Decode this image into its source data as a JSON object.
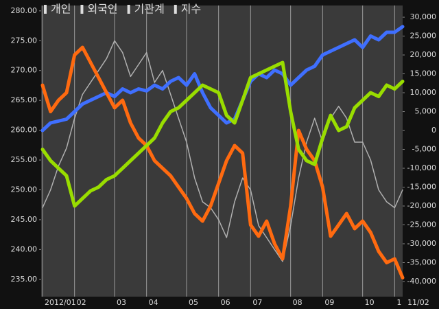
{
  "chart_data": {
    "type": "line",
    "categories": [
      "2012/01",
      null,
      null,
      null,
      "02",
      null,
      null,
      null,
      null,
      "03",
      null,
      null,
      null,
      "04",
      null,
      null,
      null,
      null,
      "05",
      null,
      null,
      null,
      "06",
      null,
      null,
      null,
      "07",
      null,
      null,
      null,
      null,
      "08",
      null,
      null,
      null,
      "09",
      null,
      null,
      null,
      null,
      "10",
      null,
      null,
      null,
      "1",
      null
    ],
    "date_label": "11/02",
    "series": [
      {
        "name": "개인",
        "color": "#3f6fff",
        "axis": "y2",
        "values": [
          0,
          2000,
          2500,
          3000,
          5000,
          7000,
          8000,
          9000,
          10000,
          9000,
          11000,
          10000,
          11000,
          10500,
          12000,
          11000,
          13000,
          14000,
          12000,
          15000,
          10000,
          6000,
          4000,
          2000,
          3000,
          8000,
          13000,
          15000,
          14000,
          16000,
          15000,
          12000,
          14000,
          16000,
          17000,
          20000,
          21000,
          22000,
          23000,
          24000,
          22000,
          25000,
          24000,
          26000,
          26000,
          27500
        ]
      },
      {
        "name": "외국인",
        "color": "#ff6a10",
        "axis": "y2",
        "values": [
          12000,
          5000,
          8000,
          10000,
          20000,
          22000,
          18000,
          14000,
          10000,
          6000,
          8000,
          2000,
          -2000,
          -4000,
          -8000,
          -10000,
          -12000,
          -15000,
          -18000,
          -22000,
          -24000,
          -20000,
          -14000,
          -8000,
          -4000,
          -6000,
          -25000,
          -28000,
          -24000,
          -30000,
          -34000,
          -20000,
          0,
          -5000,
          -8000,
          -15000,
          -28000,
          -25000,
          -22000,
          -26000,
          -24000,
          -27000,
          -32000,
          -35000,
          -34000,
          -39000
        ]
      },
      {
        "name": "기관계",
        "color": "#99dd00",
        "axis": "y2",
        "values": [
          -5000,
          -8000,
          -10000,
          -12000,
          -20000,
          -18000,
          -16000,
          -15000,
          -13000,
          -12000,
          -10000,
          -8000,
          -6000,
          -4000,
          -2000,
          2000,
          5000,
          6000,
          8000,
          10000,
          12000,
          11000,
          10000,
          4000,
          2000,
          8000,
          14000,
          15000,
          16000,
          17000,
          18000,
          5000,
          -5000,
          -8000,
          -9000,
          -2000,
          4000,
          0,
          1000,
          6000,
          8000,
          10000,
          9000,
          12000,
          11000,
          13000
        ]
      },
      {
        "name": "지수",
        "color": "#b0b0b0",
        "values": [
          247,
          250,
          254,
          257,
          262,
          266,
          268,
          270,
          272,
          275,
          273,
          269,
          271,
          273,
          268,
          270,
          266,
          262,
          258,
          252,
          248,
          247,
          245,
          242,
          248,
          252,
          250,
          244,
          242,
          240,
          238,
          244,
          252,
          258,
          262,
          258,
          262,
          264,
          262,
          258,
          258,
          255,
          250,
          248,
          247,
          250
        ]
      }
    ],
    "ylim": [
      232.1,
      280.9
    ],
    "yticks": [
      {
        "value": 235,
        "label": "235.00"
      },
      {
        "value": 240,
        "label": "240.00"
      },
      {
        "value": 245,
        "label": "245.00"
      },
      {
        "value": 250,
        "label": "250.00"
      },
      {
        "value": 255,
        "label": "255.00"
      },
      {
        "value": 260,
        "label": "260.00"
      },
      {
        "value": 265,
        "label": "265.00"
      },
      {
        "value": 270,
        "label": "270.00"
      },
      {
        "value": 275,
        "label": "275.00"
      },
      {
        "value": 280,
        "label": "280.00"
      }
    ],
    "y2lim": [
      -44000,
      33100
    ],
    "y2ticks": [
      {
        "value": -40000,
        "label": "-40,000"
      },
      {
        "value": -35000,
        "label": "-35,000"
      },
      {
        "value": -30000,
        "label": "-30,000"
      },
      {
        "value": -25000,
        "label": "-25,000"
      },
      {
        "value": -20000,
        "label": "-20,000"
      },
      {
        "value": -15000,
        "label": "-15,000"
      },
      {
        "value": -10000,
        "label": "-10,000"
      },
      {
        "value": -5000,
        "label": "-5,000"
      },
      0,
      {
        "value": 5000,
        "label": "5,000"
      },
      {
        "value": 10000,
        "label": "10,000"
      },
      {
        "value": 15000,
        "label": "15,000"
      },
      {
        "value": 20000,
        "label": "20,000"
      },
      {
        "value": 25000,
        "label": "25,000"
      },
      {
        "value": 30000,
        "label": "30,000"
      }
    ]
  }
}
